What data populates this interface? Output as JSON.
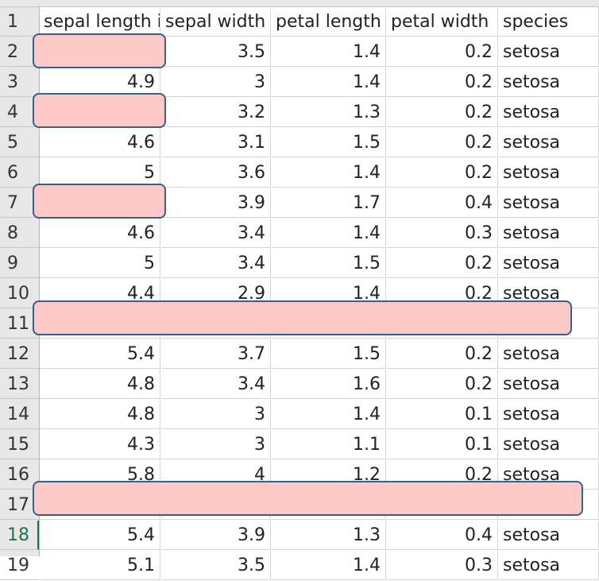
{
  "headers": [
    "sepal length i",
    "sepal width",
    "petal length",
    "petal width",
    "species"
  ],
  "rows": [
    {
      "n": "2",
      "c": [
        "",
        "3.5",
        "1.4",
        "0.2",
        "setosa"
      ]
    },
    {
      "n": "3",
      "c": [
        "4.9",
        "3",
        "1.4",
        "0.2",
        "setosa"
      ]
    },
    {
      "n": "4",
      "c": [
        "",
        "3.2",
        "1.3",
        "0.2",
        "setosa"
      ]
    },
    {
      "n": "5",
      "c": [
        "4.6",
        "3.1",
        "1.5",
        "0.2",
        "setosa"
      ]
    },
    {
      "n": "6",
      "c": [
        "5",
        "3.6",
        "1.4",
        "0.2",
        "setosa"
      ]
    },
    {
      "n": "7",
      "c": [
        "",
        "3.9",
        "1.7",
        "0.4",
        "setosa"
      ]
    },
    {
      "n": "8",
      "c": [
        "4.6",
        "3.4",
        "1.4",
        "0.3",
        "setosa"
      ]
    },
    {
      "n": "9",
      "c": [
        "5",
        "3.4",
        "1.5",
        "0.2",
        "setosa"
      ]
    },
    {
      "n": "10",
      "c": [
        "4.4",
        "2.9",
        "1.4",
        "0.2",
        "setosa"
      ]
    },
    {
      "n": "11",
      "c": [
        "",
        "",
        "",
        "",
        ""
      ]
    },
    {
      "n": "12",
      "c": [
        "5.4",
        "3.7",
        "1.5",
        "0.2",
        "setosa"
      ]
    },
    {
      "n": "13",
      "c": [
        "4.8",
        "3.4",
        "1.6",
        "0.2",
        "setosa"
      ]
    },
    {
      "n": "14",
      "c": [
        "4.8",
        "3",
        "1.4",
        "0.1",
        "setosa"
      ]
    },
    {
      "n": "15",
      "c": [
        "4.3",
        "3",
        "1.1",
        "0.1",
        "setosa"
      ]
    },
    {
      "n": "16",
      "c": [
        "5.8",
        "4",
        "1.2",
        "0.2",
        "setosa"
      ]
    },
    {
      "n": "17",
      "c": [
        "",
        "",
        "",
        "",
        ""
      ]
    },
    {
      "n": "18",
      "c": [
        "5.4",
        "3.9",
        "1.3",
        "0.4",
        "setosa"
      ]
    },
    {
      "n": "19",
      "c": [
        "5.1",
        "3.5",
        "1.4",
        "0.3",
        "setosa"
      ]
    }
  ]
}
